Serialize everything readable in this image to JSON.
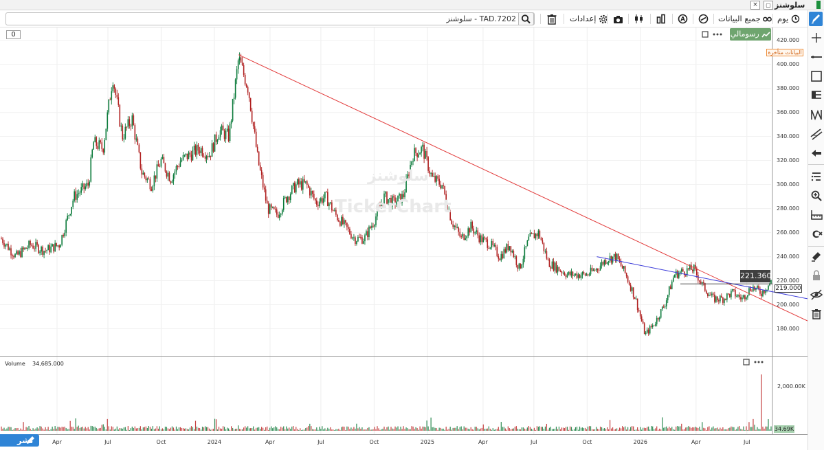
{
  "window": {
    "title": "سلوشنز",
    "close_label": "×"
  },
  "toolbar": {
    "search_value": "TAD.7202 - سلوشنز",
    "period_label": "يوم",
    "range_label": "جميع البيانات",
    "settings_label": "إعدادات"
  },
  "chart": {
    "zero_label": "0",
    "chart_type_label": "رسومالي",
    "delayed_label": "البيانات متأخرة",
    "cursor_price": "221.360",
    "last_price": "219.000",
    "watermark_ar": "سلوشنز",
    "watermark_en": "TickerChart",
    "volume_label": "Volume",
    "volume_value": "34,685.000",
    "volume_last": "34.69K",
    "share_label": "نشر"
  },
  "colors": {
    "accent": "#2f84d6",
    "up_candle": "#0b7a3a",
    "down_candle": "#b02020",
    "trend_red": "#e23b3b",
    "trend_blue": "#3b3bd9",
    "chart_type_bg": "#6fa56f"
  },
  "chart_data": {
    "type": "candlestick",
    "y_ticks": [
      "420.000",
      "400.000",
      "380.000",
      "360.000",
      "340.000",
      "320.000",
      "300.000",
      "280.000",
      "260.000",
      "240.000",
      "220.000",
      "200.000",
      "180.000"
    ],
    "volume_ticks": [
      "2,000.00K"
    ],
    "x_ticks": [
      "Apr",
      "Jul",
      "Oct",
      "2024",
      "Apr",
      "Jul",
      "Oct",
      "2025",
      "Apr",
      "Jul",
      "Oct",
      "2026",
      "Apr",
      "Jul"
    ],
    "ylim": [
      162,
      425
    ],
    "close_path": [
      [
        0,
        255
      ],
      [
        3,
        240
      ],
      [
        6,
        250
      ],
      [
        9,
        245
      ],
      [
        12,
        250
      ],
      [
        15,
        290
      ],
      [
        18,
        300
      ],
      [
        19,
        335
      ],
      [
        21,
        330
      ],
      [
        23,
        390
      ],
      [
        25,
        340
      ],
      [
        27,
        355
      ],
      [
        29,
        310
      ],
      [
        31,
        300
      ],
      [
        33,
        320
      ],
      [
        35,
        305
      ],
      [
        37,
        320
      ],
      [
        39,
        325
      ],
      [
        41,
        330
      ],
      [
        43,
        325
      ],
      [
        45,
        345
      ],
      [
        47,
        340
      ],
      [
        49,
        405
      ],
      [
        51,
        380
      ],
      [
        53,
        320
      ],
      [
        55,
        280
      ],
      [
        57,
        275
      ],
      [
        59,
        290
      ],
      [
        61,
        300
      ],
      [
        63,
        300
      ],
      [
        65,
        285
      ],
      [
        67,
        290
      ],
      [
        69,
        275
      ],
      [
        71,
        265
      ],
      [
        73,
        255
      ],
      [
        75,
        255
      ],
      [
        77,
        270
      ],
      [
        79,
        290
      ],
      [
        81,
        285
      ],
      [
        83,
        290
      ],
      [
        85,
        325
      ],
      [
        87,
        330
      ],
      [
        89,
        305
      ],
      [
        91,
        300
      ],
      [
        93,
        270
      ],
      [
        95,
        255
      ],
      [
        97,
        265
      ],
      [
        99,
        255
      ],
      [
        101,
        250
      ],
      [
        103,
        240
      ],
      [
        105,
        250
      ],
      [
        107,
        230
      ],
      [
        109,
        255
      ],
      [
        111,
        260
      ],
      [
        113,
        235
      ],
      [
        115,
        230
      ],
      [
        117,
        225
      ],
      [
        119,
        225
      ],
      [
        121,
        225
      ],
      [
        123,
        230
      ],
      [
        125,
        238
      ],
      [
        127,
        240
      ],
      [
        129,
        225
      ],
      [
        131,
        205
      ],
      [
        133,
        175
      ],
      [
        135,
        185
      ],
      [
        137,
        200
      ],
      [
        139,
        225
      ],
      [
        141,
        228
      ],
      [
        143,
        230
      ],
      [
        145,
        215
      ],
      [
        147,
        205
      ],
      [
        149,
        205
      ],
      [
        151,
        210
      ],
      [
        153,
        205
      ],
      [
        155,
        215
      ],
      [
        157,
        210
      ],
      [
        159,
        219
      ]
    ],
    "trendlines": [
      {
        "color": "#e23b3b",
        "from": [
          49,
          408
        ],
        "to": [
          159,
          203
        ]
      },
      {
        "color": "#3b3bd9",
        "from": [
          123,
          240
        ],
        "to": [
          159,
          211
        ]
      }
    ]
  }
}
